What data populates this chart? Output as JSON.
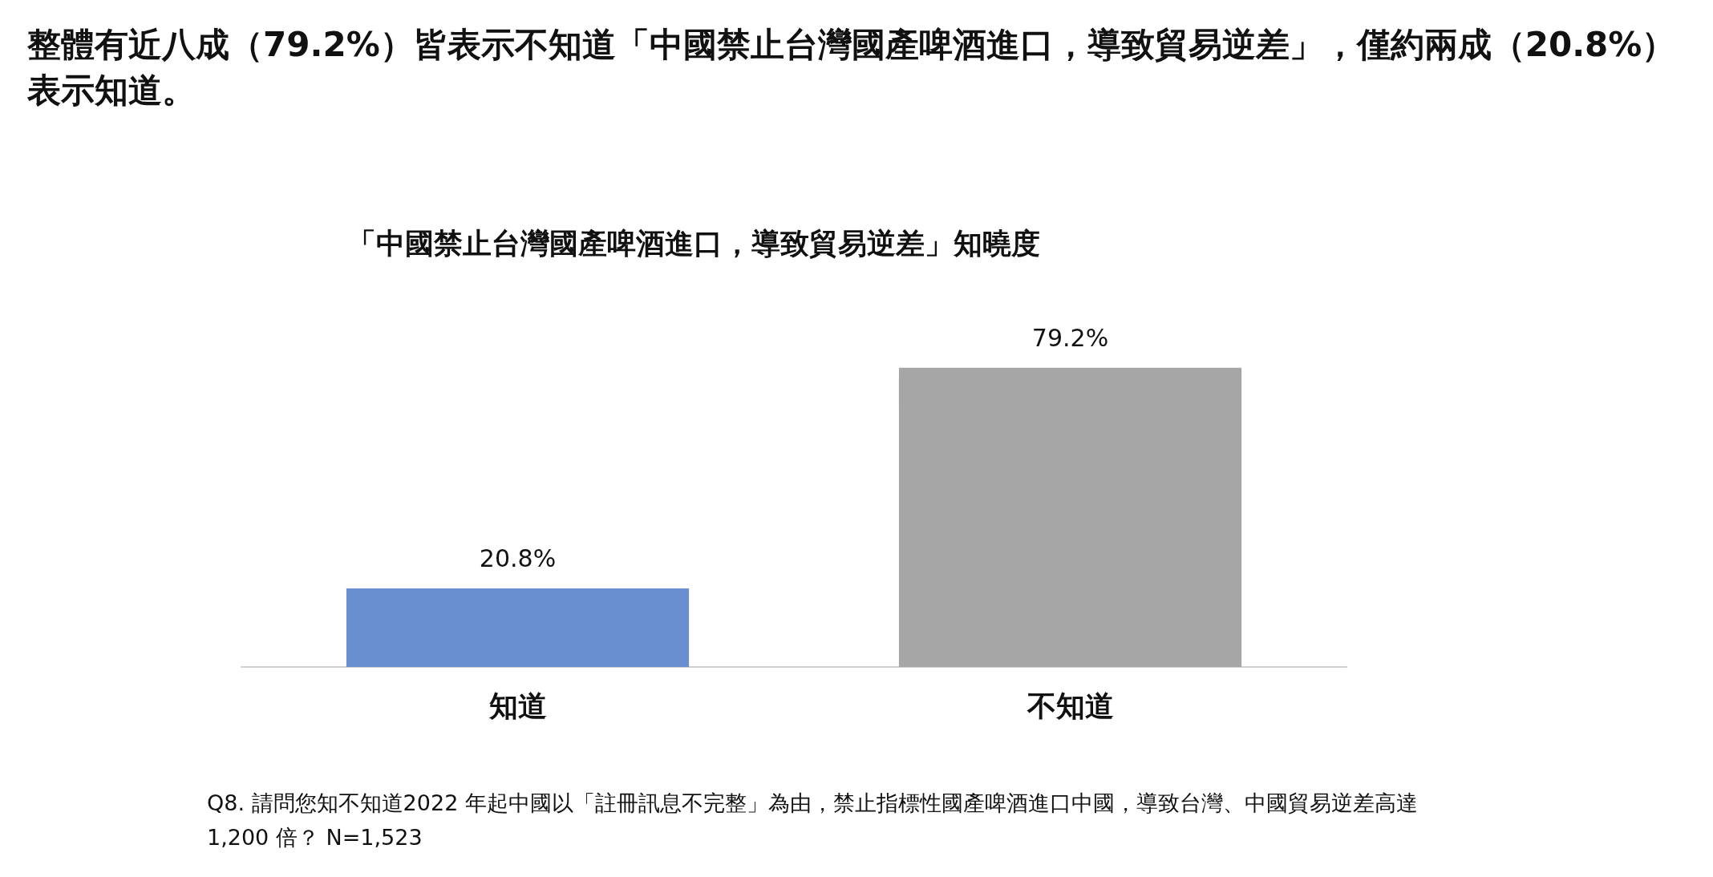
{
  "chart_data": {
    "type": "bar",
    "title": "整體有近八成（79.2%）皆表示不知道「中國禁止台灣國產啤酒進口，導致貿易逆差」，僅約兩成（20.8%）表示知道。",
    "subtitle": "「中國禁止台灣國產啤酒進口，導致貿易逆差」知曉度",
    "categories": [
      "知道",
      "不知道"
    ],
    "values": [
      20.8,
      79.2
    ],
    "colors": [
      "#6a8fd0",
      "#a6a6a6"
    ],
    "value_labels": [
      "20.8%",
      "79.2%"
    ],
    "tick_labels": "x",
    "annotations": [
      "Q8. 請問您知不知道2022 年起中國以「註冊訊息不完整」為由，禁止指標性國產啤酒進口中國，導致台灣、中國貿易逆差高達 1,200 倍？ N=1,523"
    ]
  }
}
